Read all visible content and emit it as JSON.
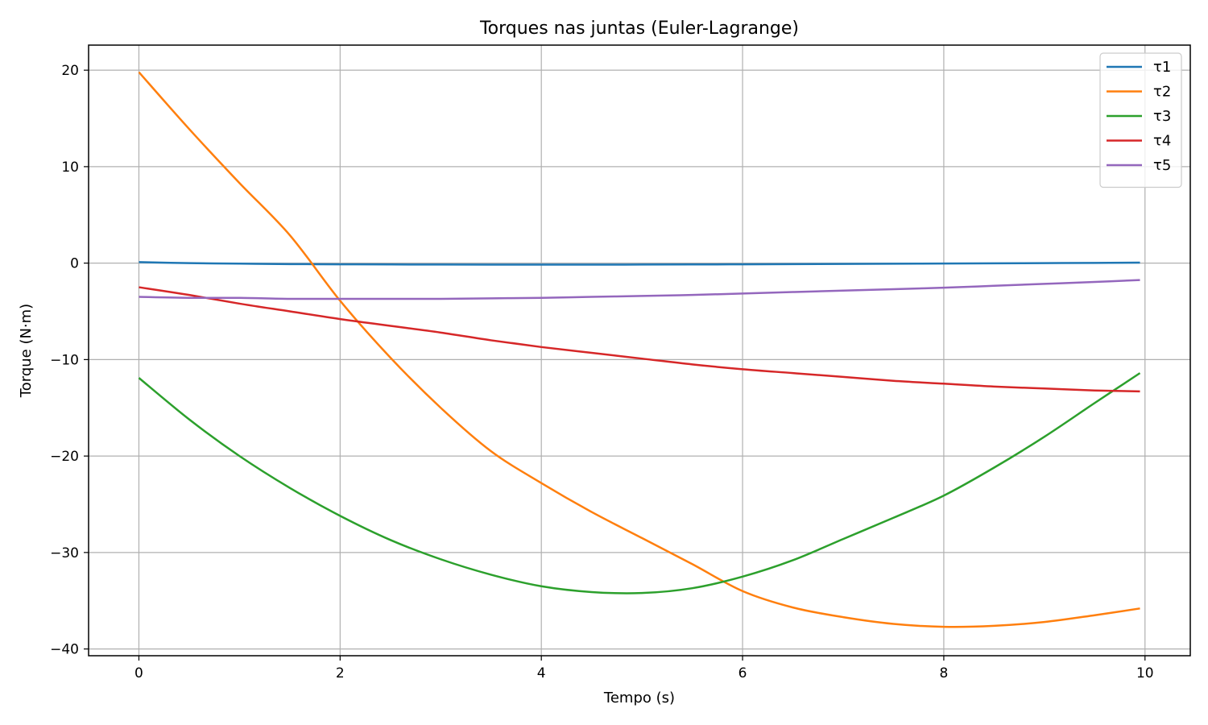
{
  "chart_data": {
    "type": "line",
    "title": "Torques nas juntas (Euler-Lagrange)",
    "xlabel": "Tempo (s)",
    "ylabel": "Torque (N·m)",
    "xlim": [
      -0.5,
      10.45
    ],
    "ylim": [
      -40.7,
      22.6
    ],
    "xticks": [
      0,
      2,
      4,
      6,
      8,
      10
    ],
    "xtick_labels": [
      "0",
      "2",
      "4",
      "6",
      "8",
      "10"
    ],
    "yticks": [
      20,
      10,
      0,
      -10,
      -20,
      -30,
      -40
    ],
    "ytick_labels": [
      "20",
      "10",
      "0",
      "−10",
      "−20",
      "−30",
      "−40"
    ],
    "grid": true,
    "legend_position": "top-right",
    "x": [
      0,
      0.5,
      1,
      1.5,
      2,
      2.5,
      3,
      3.5,
      4,
      4.5,
      5,
      5.5,
      6,
      6.5,
      7,
      7.5,
      8,
      8.5,
      9,
      9.5,
      9.95
    ],
    "series": [
      {
        "name": "τ1",
        "color": "#1f77b4",
        "values": [
          0.1,
          0.0,
          -0.05,
          -0.1,
          -0.12,
          -0.14,
          -0.15,
          -0.16,
          -0.16,
          -0.16,
          -0.15,
          -0.14,
          -0.12,
          -0.1,
          -0.08,
          -0.06,
          -0.04,
          -0.02,
          0.0,
          0.02,
          0.05
        ]
      },
      {
        "name": "τ2",
        "color": "#ff7f0e",
        "values": [
          19.8,
          13.9,
          8.3,
          2.9,
          -3.9,
          -9.8,
          -15.0,
          -19.5,
          -22.8,
          -25.8,
          -28.5,
          -31.2,
          -34.0,
          -35.7,
          -36.7,
          -37.4,
          -37.7,
          -37.6,
          -37.2,
          -36.5,
          -35.8
        ]
      },
      {
        "name": "τ3",
        "color": "#2ca02c",
        "values": [
          -11.9,
          -16.2,
          -20.0,
          -23.3,
          -26.2,
          -28.7,
          -30.7,
          -32.3,
          -33.5,
          -34.1,
          -34.2,
          -33.7,
          -32.5,
          -30.8,
          -28.6,
          -26.4,
          -24.1,
          -21.2,
          -18.0,
          -14.5,
          -11.4
        ]
      },
      {
        "name": "τ4",
        "color": "#d62728",
        "values": [
          -2.5,
          -3.3,
          -4.2,
          -5.0,
          -5.8,
          -6.5,
          -7.2,
          -8.0,
          -8.7,
          -9.3,
          -9.9,
          -10.5,
          -11.0,
          -11.4,
          -11.8,
          -12.2,
          -12.5,
          -12.8,
          -13.0,
          -13.2,
          -13.3
        ]
      },
      {
        "name": "τ5",
        "color": "#9467bd",
        "values": [
          -3.5,
          -3.6,
          -3.6,
          -3.7,
          -3.7,
          -3.7,
          -3.7,
          -3.65,
          -3.6,
          -3.5,
          -3.4,
          -3.3,
          -3.15,
          -3.0,
          -2.85,
          -2.7,
          -2.55,
          -2.35,
          -2.15,
          -1.95,
          -1.75
        ]
      }
    ]
  }
}
